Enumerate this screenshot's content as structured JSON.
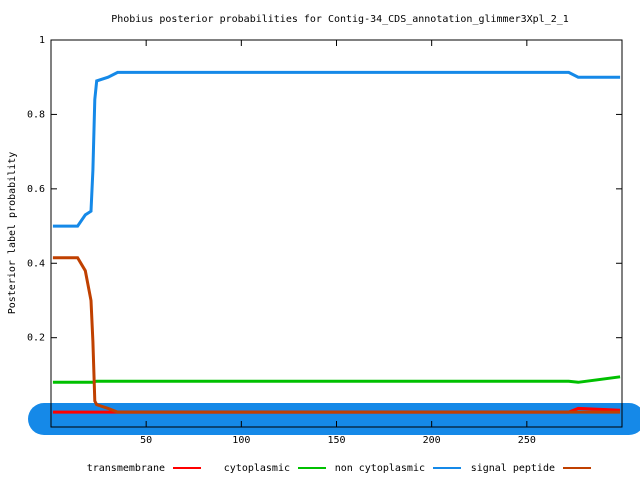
{
  "chart_data": {
    "type": "line",
    "title": "Phobius posterior probabilities for Contig-34_CDS_annotation_glimmer3Xpl_2_1",
    "y_label": "Posterior label probability",
    "x": [
      1,
      14,
      18,
      21,
      22,
      23,
      24,
      30,
      35,
      100,
      200,
      272,
      277,
      299
    ],
    "series": [
      {
        "name": "transmembrane",
        "color": "#ff0000",
        "values": [
          0,
          0,
          0,
          0,
          0,
          0,
          0,
          0,
          0,
          0,
          0,
          0,
          0.01,
          0.005
        ]
      },
      {
        "name": "cytoplasmic",
        "color": "#00c000",
        "values": [
          0.08,
          0.08,
          0.08,
          0.08,
          0.08,
          0.082,
          0.083,
          0.083,
          0.083,
          0.083,
          0.083,
          0.083,
          0.08,
          0.095
        ]
      },
      {
        "name": "non cytoplasmic",
        "color": "#1589e8",
        "values": [
          0.5,
          0.5,
          0.53,
          0.54,
          0.65,
          0.84,
          0.89,
          0.9,
          0.913,
          0.913,
          0.913,
          0.913,
          0.9,
          0.9
        ]
      },
      {
        "name": "signal peptide",
        "color": "#c04000",
        "values": [
          0.415,
          0.415,
          0.38,
          0.3,
          0.19,
          0.03,
          0.02,
          0.01,
          0,
          0,
          0,
          0,
          0,
          0
        ]
      }
    ],
    "xlim": [
      0,
      300
    ],
    "ylim": [
      -0.04,
      1
    ],
    "xticks": [
      50,
      100,
      150,
      200,
      250
    ],
    "yticks": [
      0.2,
      0.4,
      0.6,
      0.8,
      1
    ]
  }
}
